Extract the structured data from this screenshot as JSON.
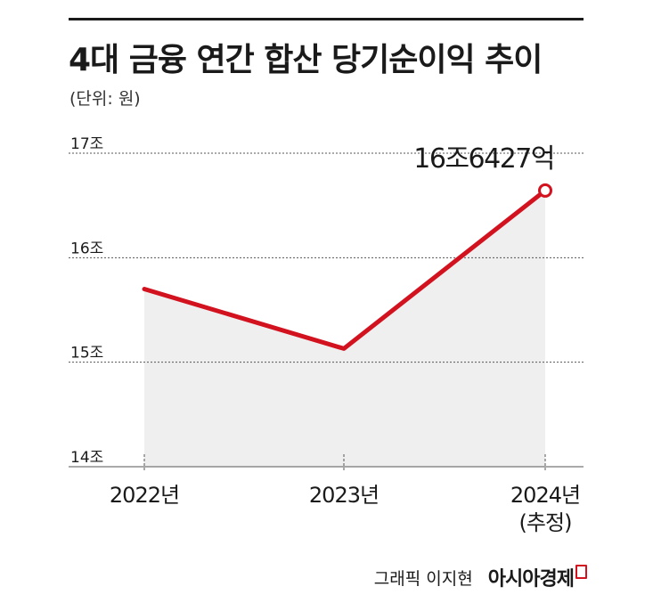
{
  "title": "4대 금융 연간 합산 당기순이익 추이",
  "unit_label": "(단위: 원)",
  "footer": {
    "credit": "그래픽 이지현",
    "brand": "아시아경제"
  },
  "colors": {
    "line": "#d3121f",
    "area": "#efefef",
    "grid": "#555555",
    "axis": "#555555",
    "text": "#1a1a1a"
  },
  "chart_data": {
    "type": "area",
    "title": "4대 금융 연간 합산 당기순이익 추이",
    "ylabel": "(단위: 원)",
    "xlabel": "",
    "categories": [
      "2022년",
      "2023년",
      "2024년"
    ],
    "category_sublabels": [
      "",
      "",
      "(추정)"
    ],
    "y_ticks": [
      14,
      15,
      16,
      17
    ],
    "y_tick_labels": [
      "14조",
      "15조",
      "16조",
      "17조"
    ],
    "ylim": [
      14,
      17
    ],
    "grid": "dotted horizontal",
    "series": [
      {
        "values": [
          15.7,
          15.13,
          16.6427
        ]
      }
    ],
    "annotations": [
      {
        "index": 2,
        "text": "16조6427억"
      }
    ]
  }
}
